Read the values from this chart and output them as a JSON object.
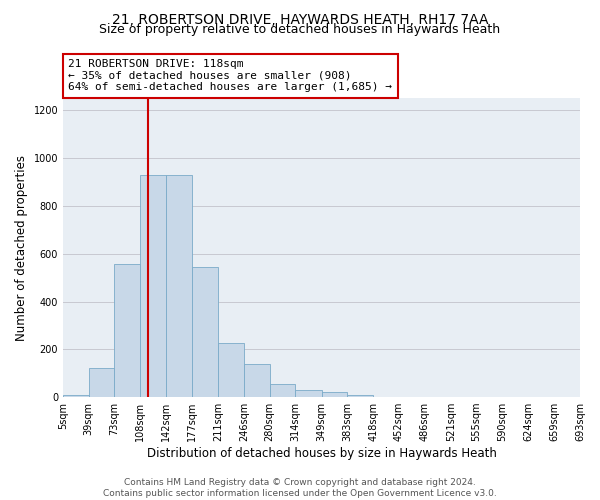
{
  "title_line1": "21, ROBERTSON DRIVE, HAYWARDS HEATH, RH17 7AA",
  "title_line2": "Size of property relative to detached houses in Haywards Heath",
  "xlabel": "Distribution of detached houses by size in Haywards Heath",
  "ylabel": "Number of detached properties",
  "footer_line1": "Contains HM Land Registry data © Crown copyright and database right 2024.",
  "footer_line2": "Contains public sector information licensed under the Open Government Licence v3.0.",
  "annotation_line1": "21 ROBERTSON DRIVE: 118sqm",
  "annotation_line2": "← 35% of detached houses are smaller (908)",
  "annotation_line3": "64% of semi-detached houses are larger (1,685) →",
  "bar_color": "#c8d8e8",
  "bar_edge_color": "#7aaac8",
  "vline_color": "#cc0000",
  "vline_x": 118,
  "annotation_box_edgecolor": "#cc0000",
  "bin_edges": [
    5,
    39,
    73,
    108,
    142,
    177,
    211,
    246,
    280,
    314,
    349,
    383,
    418,
    452,
    486,
    521,
    555,
    590,
    624,
    659,
    693
  ],
  "bar_heights": [
    10,
    120,
    555,
    930,
    930,
    545,
    225,
    140,
    55,
    30,
    20,
    10,
    0,
    0,
    0,
    0,
    0,
    0,
    0,
    0
  ],
  "ylim": [
    0,
    1250
  ],
  "xlim": [
    5,
    693
  ],
  "yticks": [
    0,
    200,
    400,
    600,
    800,
    1000,
    1200
  ],
  "grid_color": "#c8c8d0",
  "bg_color": "#e8eef4",
  "title1_fontsize": 10,
  "title2_fontsize": 9,
  "xlabel_fontsize": 8.5,
  "ylabel_fontsize": 8.5,
  "tick_fontsize": 7,
  "footer_fontsize": 6.5,
  "annotation_fontsize": 8
}
